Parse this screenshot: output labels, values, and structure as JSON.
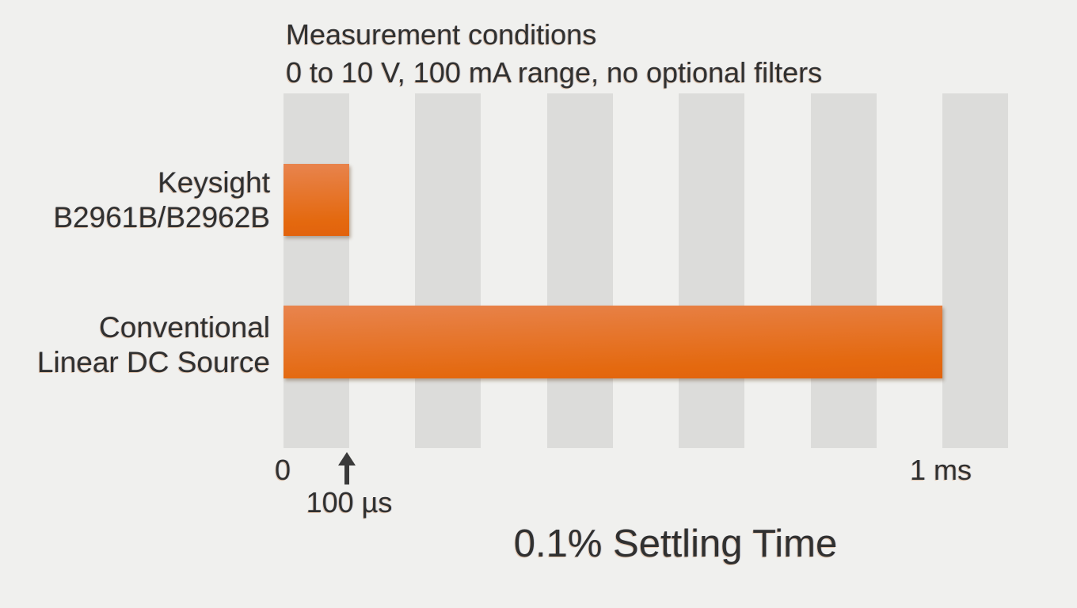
{
  "chart_data": {
    "type": "bar",
    "orientation": "horizontal",
    "title": "0.1% Settling Time",
    "conditions_line1": "Measurement conditions",
    "conditions_line2": "0 to 10 V, 100 mA range, no optional filters",
    "categories": [
      "Keysight B2961B/B2962B",
      "Conventional Linear DC Source"
    ],
    "values_us": [
      100,
      1000
    ],
    "value_labels": [
      "100 µs",
      "1 ms"
    ],
    "x_axis": {
      "unit": "µs",
      "range_us": [
        0,
        1100
      ],
      "ticks": [
        {
          "value_us": 0,
          "label": "0"
        },
        {
          "value_us": 100,
          "label": "100 µs",
          "marker": "up-arrow"
        },
        {
          "value_us": 1000,
          "label": "1 ms"
        }
      ],
      "grid_bands_us": [
        [
          0,
          100
        ],
        [
          200,
          300
        ],
        [
          400,
          500
        ],
        [
          600,
          700
        ],
        [
          800,
          900
        ],
        [
          1000,
          1100
        ]
      ]
    },
    "legend": false,
    "bar_color_top": "#e8824e",
    "bar_color_bottom": "#e3620e",
    "grid_band_color": "#dcdcda",
    "background_color": "#f0f0ee",
    "text_color": "#303030"
  },
  "header": {
    "line1": "Measurement conditions",
    "line2": "0 to 10 V, 100 mA range, no optional filters"
  },
  "labels": {
    "keysight_line1": "Keysight",
    "keysight_line2": "B2961B/B2962B",
    "conventional_line1": "Conventional",
    "conventional_line2": "Linear DC Source"
  },
  "axis": {
    "zero": "0",
    "hundred_us": "100 µs",
    "one_ms": "1 ms"
  },
  "footer": {
    "title": "0.1% Settling Time"
  }
}
